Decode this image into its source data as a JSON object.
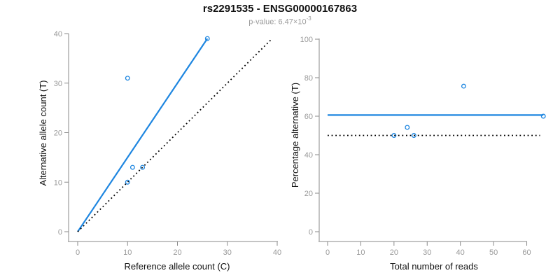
{
  "header": {
    "title": "rs2291535 - ENSG00000167863",
    "pvalue_prefix": "p-value: 6.47×10",
    "pvalue_exponent": "-3"
  },
  "colors": {
    "accent_blue": "#1E86E0",
    "line_black": "#000000",
    "axis_line": "#8A8A8A",
    "tick_label": "#999999",
    "axis_label": "#111111",
    "title": "#111111",
    "subtitle": "#9B9B9B",
    "background": "#FFFFFF"
  },
  "chart_data": [
    {
      "id": "allele-count-scatter",
      "type": "scatter",
      "xlabel": "Reference allele count (C)",
      "ylabel": "Alternative allele count (T)",
      "xlim": [
        0,
        40
      ],
      "ylim": [
        0,
        40
      ],
      "xticks": [
        0,
        10,
        20,
        30,
        40
      ],
      "yticks": [
        0,
        10,
        20,
        30,
        40
      ],
      "points": [
        [
          10,
          31
        ],
        [
          11,
          13
        ],
        [
          13,
          13
        ],
        [
          10,
          10
        ],
        [
          26,
          39
        ]
      ],
      "lines": [
        {
          "id": "fit-line",
          "style": "solid",
          "color": "accent_blue",
          "x": [
            0,
            26
          ],
          "y": [
            0,
            39
          ]
        },
        {
          "id": "identity-line",
          "style": "dotted",
          "color": "line_black",
          "x": [
            0,
            39
          ],
          "y": [
            0,
            39
          ]
        }
      ],
      "grid": false,
      "legend": null
    },
    {
      "id": "percentage-scatter",
      "type": "scatter",
      "xlabel": "Total number of reads",
      "ylabel": "Percentage alternative (T)",
      "xlim": [
        0,
        65
      ],
      "ylim": [
        0,
        100
      ],
      "xticks": [
        0,
        10,
        20,
        30,
        40,
        50,
        60
      ],
      "yticks": [
        0,
        20,
        40,
        60,
        80,
        100
      ],
      "points": [
        [
          41,
          75.6
        ],
        [
          24,
          54.2
        ],
        [
          26,
          50
        ],
        [
          20,
          50
        ],
        [
          65,
          60
        ]
      ],
      "lines": [
        {
          "id": "fit-line",
          "style": "solid",
          "color": "accent_blue",
          "x": [
            0,
            65
          ],
          "y": [
            60.6,
            60.6
          ]
        },
        {
          "id": "null-line",
          "style": "dotted",
          "color": "line_black",
          "x": [
            0,
            64
          ],
          "y": [
            50,
            50
          ]
        }
      ],
      "grid": false,
      "legend": null
    }
  ]
}
